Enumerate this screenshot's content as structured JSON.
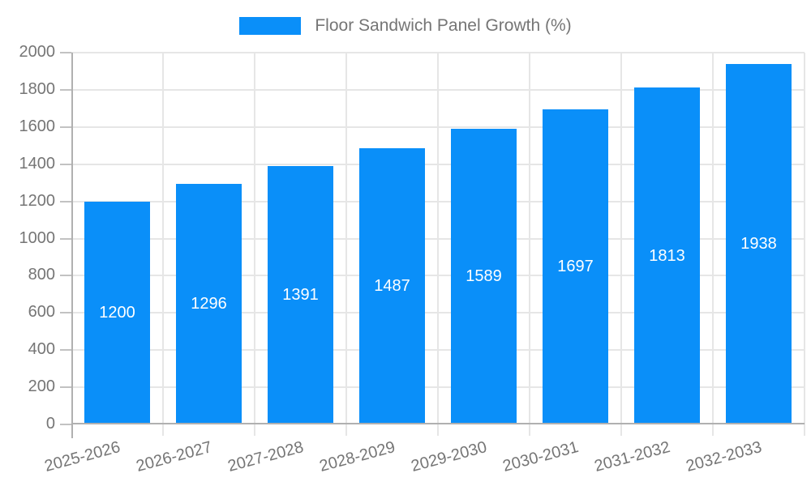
{
  "chart_data": {
    "type": "bar",
    "series_name": "Floor Sandwich Panel Growth (%)",
    "title": "Floor Sandwich Panel Growth (%)",
    "categories": [
      "2025-2026",
      "2026-2027",
      "2027-2028",
      "2028-2029",
      "2029-2030",
      "2030-2031",
      "2031-2032",
      "2032-2033"
    ],
    "values": [
      1200,
      1296,
      1391,
      1487,
      1589,
      1697,
      1813,
      1938
    ],
    "y_ticks": [
      0,
      200,
      400,
      600,
      800,
      1000,
      1200,
      1400,
      1600,
      1800,
      2000
    ],
    "ylim": [
      0,
      2000
    ],
    "xlabel": "",
    "ylabel": "",
    "grid": true,
    "legend_position": "top-center",
    "data_labels": "inside-center",
    "x_label_rotation_deg": -15,
    "colors": {
      "bar": "#0a8ff9",
      "axis_text": "#757575",
      "grid_line": "#e6e6e6",
      "tick_line": "#c2c2c2",
      "axis_line": "#b0b0b0",
      "data_label": "#ffffff",
      "background": "#ffffff"
    }
  }
}
